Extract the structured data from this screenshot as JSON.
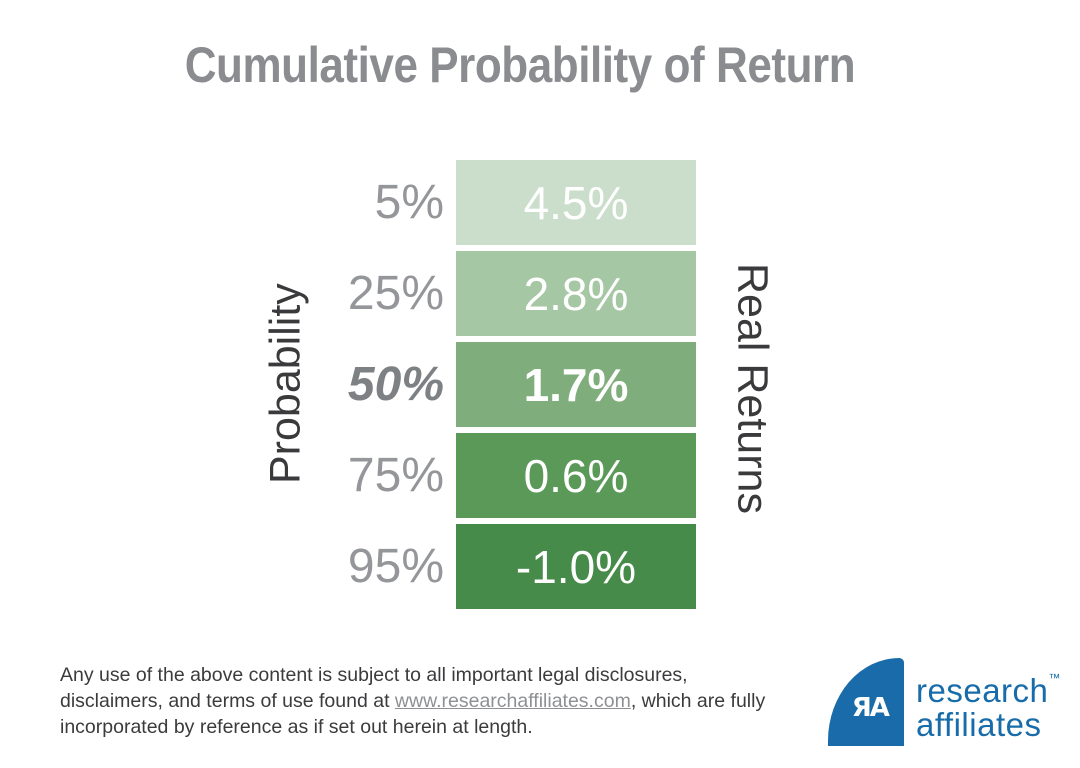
{
  "title": "Cumulative Probability of Return",
  "chart_data": {
    "type": "table",
    "title": "Cumulative Probability of Return",
    "left_axis_label": "Probability",
    "right_axis_label": "Real Returns",
    "categories": [
      "5%",
      "25%",
      "50%",
      "75%",
      "95%"
    ],
    "probabilities_pct": [
      5,
      25,
      50,
      75,
      95
    ],
    "real_returns_pct": [
      4.5,
      2.8,
      1.7,
      0.6,
      -1.0
    ],
    "emphasized_category": "50%",
    "bar_colors": [
      "#cbdecb",
      "#a5c7a3",
      "#7fae7c",
      "#5b9959",
      "#478b4a"
    ],
    "legend_position": "none",
    "grid": false
  },
  "axes": {
    "left": "Probability",
    "right": "Real Returns"
  },
  "chart_rows": [
    {
      "probability": "5%",
      "return": "4.5%",
      "color": "#cbdecb"
    },
    {
      "probability": "25%",
      "return": "2.8%",
      "color": "#a5c7a3"
    },
    {
      "probability": "50%",
      "return": "1.7%",
      "color": "#7fae7c"
    },
    {
      "probability": "75%",
      "return": "0.6%",
      "color": "#5b9959"
    },
    {
      "probability": "95%",
      "return": "-1.0%",
      "color": "#478b4a"
    }
  ],
  "disclaimer": {
    "text_before": "Any use of the above content is subject to all important legal disclosures, disclaimers, and terms of use found at ",
    "link": "www.researchaffiliates.com",
    "text_after": ", which are fully incorporated by reference as if set out herein at length."
  },
  "logo": {
    "monogram": "ЯA",
    "line1": "research",
    "line2": "affiliates",
    "tm": "™",
    "brand_color": "#176ca9"
  },
  "colors": {
    "title_gray": "#8a8c8f",
    "label_gray": "#94969a",
    "emphasis_gray": "#7e8184",
    "axis_dark": "#3a3a3c",
    "link_gray": "#8e9093",
    "brand_blue": "#1a6ba9"
  }
}
